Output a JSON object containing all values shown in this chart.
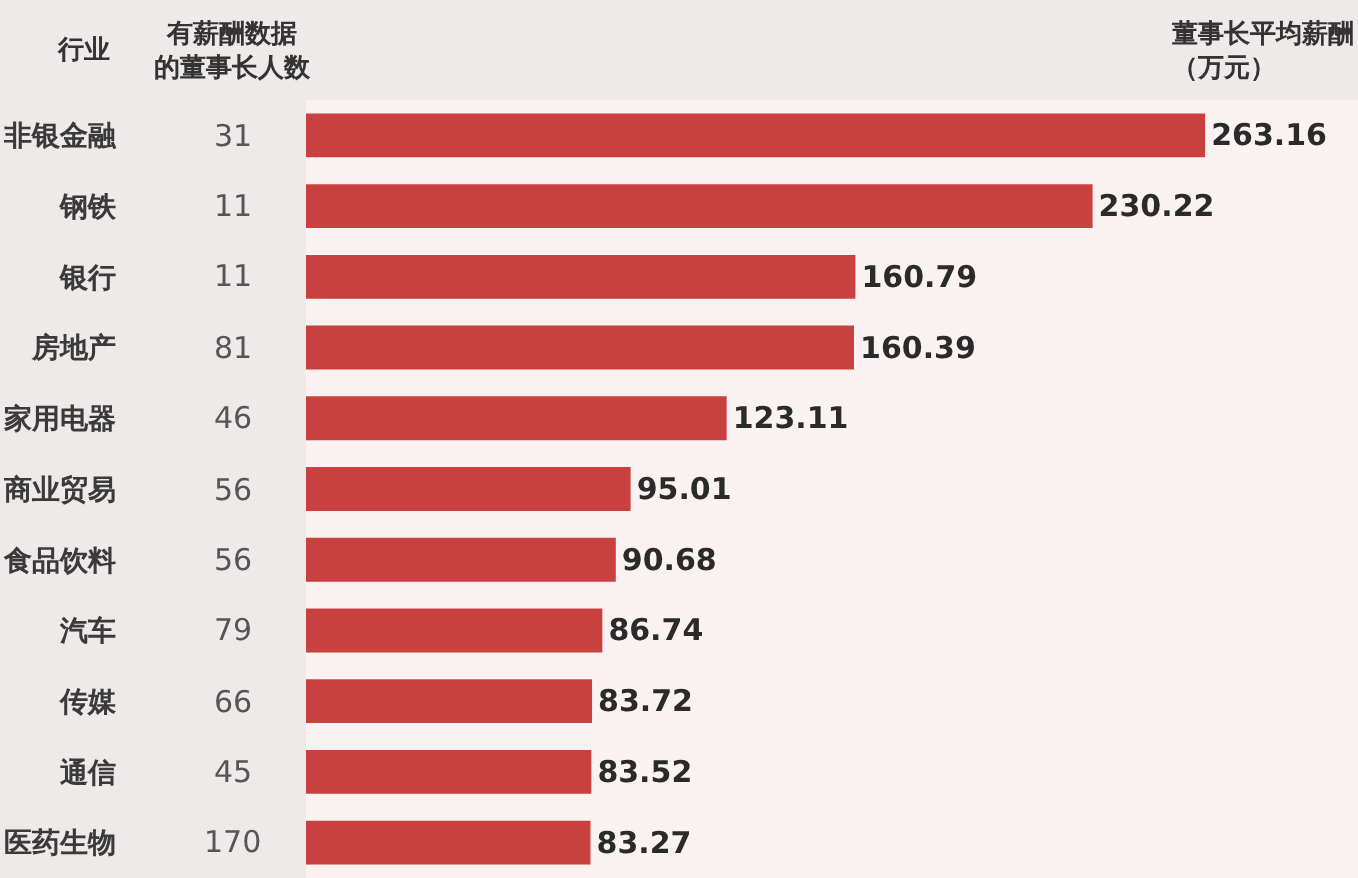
{
  "chart_data": {
    "type": "bar",
    "orientation": "horizontal",
    "ylabel": "行业",
    "y2label": "有薪酬数据的董事长人数",
    "xlabel": "董事长平均薪酬（万元）",
    "categories": [
      "非银金融",
      "钢铁",
      "银行",
      "房地产",
      "家用电器",
      "商业贸易",
      "食品饮料",
      "汽车",
      "传媒",
      "通信",
      "医药生物"
    ],
    "y2_categories": [
      "31",
      "11",
      "11",
      "81",
      "46",
      "56",
      "56",
      "79",
      "66",
      "45",
      "170"
    ],
    "values": [
      263.16,
      230.22,
      160.79,
      160.39,
      123.11,
      95.01,
      90.68,
      86.74,
      83.72,
      83.52,
      83.27
    ],
    "color": "#c8413f",
    "data_labels": true,
    "tick_labels": "y"
  }
}
